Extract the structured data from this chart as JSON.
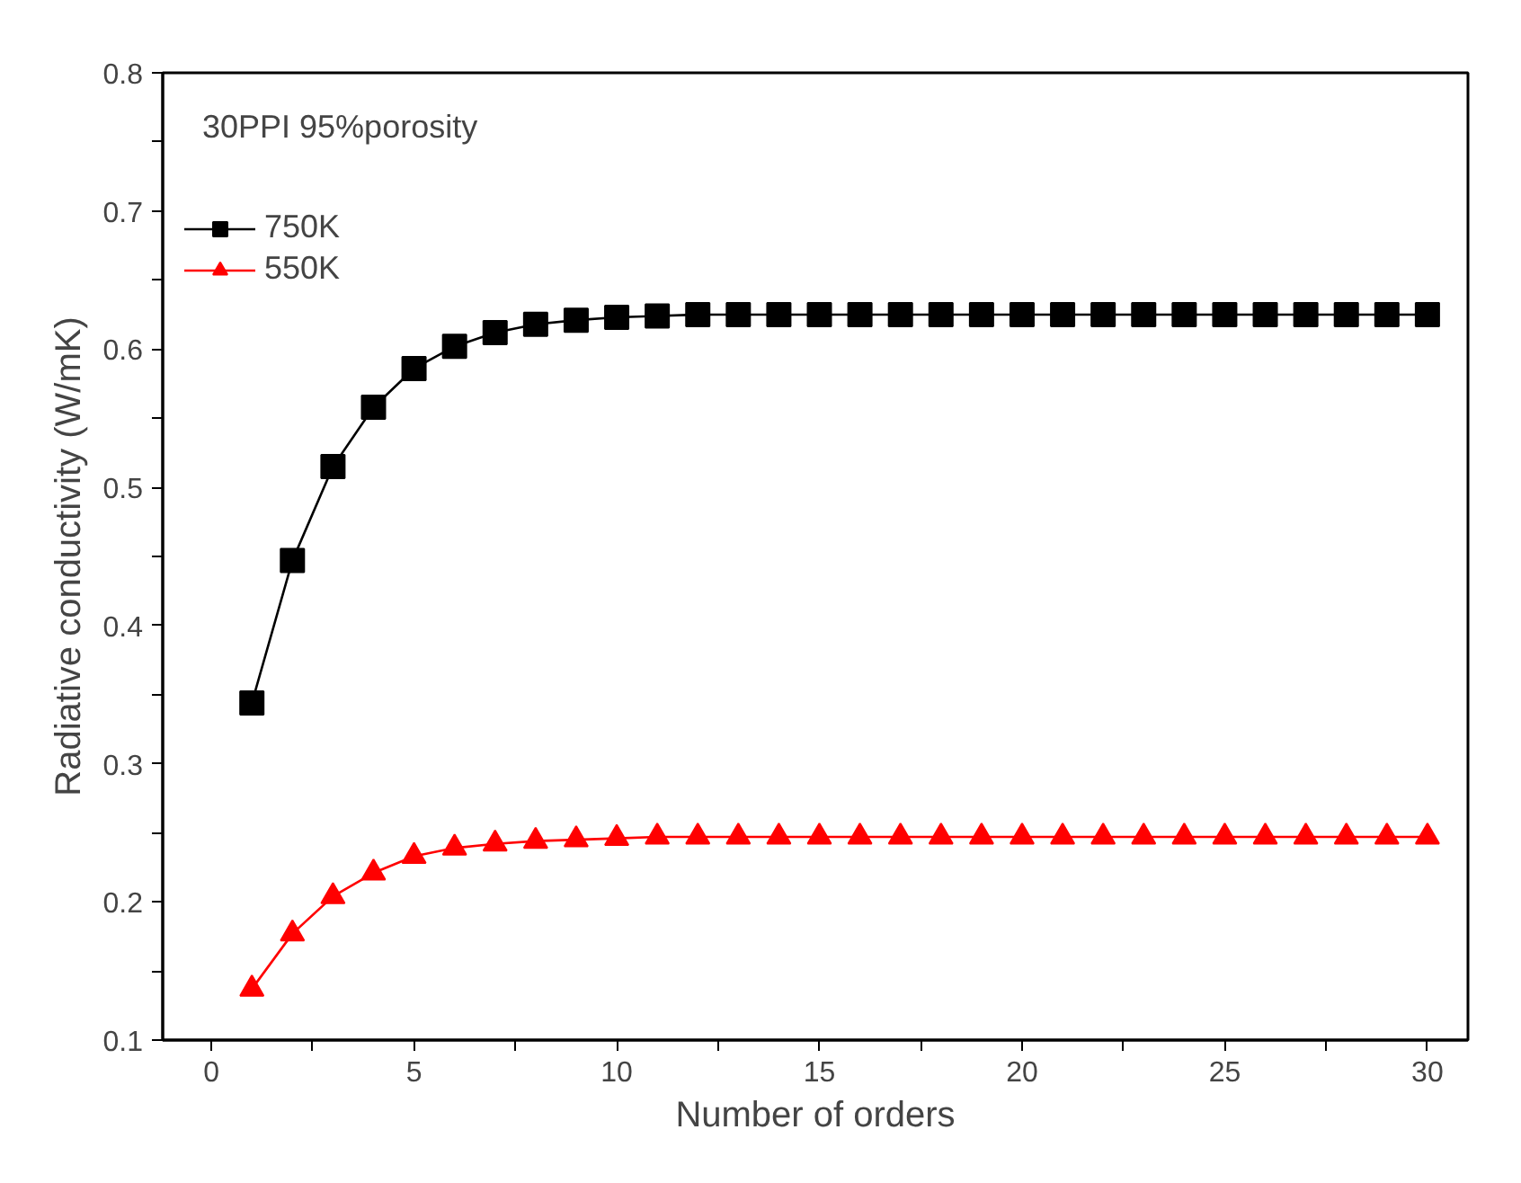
{
  "chart_data": {
    "type": "line",
    "xlabel": "Number of orders",
    "ylabel": "Radiative conductivity (W/mK)",
    "annotations": [
      "30PPI 95%porosity"
    ],
    "x": [
      1,
      2,
      3,
      4,
      5,
      6,
      7,
      8,
      9,
      10,
      11,
      12,
      13,
      14,
      15,
      16,
      17,
      18,
      19,
      20,
      21,
      22,
      23,
      24,
      25,
      26,
      27,
      28,
      29,
      30
    ],
    "series": [
      {
        "name": "750K",
        "color": "#000000",
        "marker": "square",
        "values": [
          0.344,
          0.447,
          0.515,
          0.558,
          0.586,
          0.602,
          0.612,
          0.618,
          0.621,
          0.623,
          0.624,
          0.625,
          0.625,
          0.625,
          0.625,
          0.625,
          0.625,
          0.625,
          0.625,
          0.625,
          0.625,
          0.625,
          0.625,
          0.625,
          0.625,
          0.625,
          0.625,
          0.625,
          0.625,
          0.625
        ]
      },
      {
        "name": "550K",
        "color": "#ff0000",
        "marker": "triangle",
        "values": [
          0.137,
          0.177,
          0.204,
          0.221,
          0.233,
          0.239,
          0.242,
          0.244,
          0.245,
          0.246,
          0.247,
          0.247,
          0.247,
          0.247,
          0.247,
          0.247,
          0.247,
          0.247,
          0.247,
          0.247,
          0.247,
          0.247,
          0.247,
          0.247,
          0.247,
          0.247,
          0.247,
          0.247,
          0.247,
          0.247
        ]
      }
    ],
    "xlim": [
      -1.2,
      31
    ],
    "ylim": [
      0.1,
      0.8
    ],
    "xticks": [
      0,
      {
        "value": 2.5,
        "label": null
      },
      5,
      {
        "value": 7.5,
        "label": null
      },
      10,
      {
        "value": 12.5,
        "label": null
      },
      15,
      {
        "value": 17.5,
        "label": null
      },
      20,
      {
        "value": 22.5,
        "label": null
      },
      25,
      {
        "value": 27.5,
        "label": null
      },
      30
    ],
    "yticks": [
      0.1,
      {
        "value": 0.15,
        "label": null
      },
      0.2,
      {
        "value": 0.25,
        "label": null
      },
      0.3,
      {
        "value": 0.35,
        "label": null
      },
      0.4,
      {
        "value": 0.45,
        "label": null
      },
      0.5,
      {
        "value": 0.55,
        "label": null
      },
      0.6,
      {
        "value": 0.65,
        "label": null
      },
      0.7,
      {
        "value": 0.75,
        "label": null
      },
      0.8
    ],
    "grid": false,
    "legend": "top left",
    "line_style": "solid"
  }
}
